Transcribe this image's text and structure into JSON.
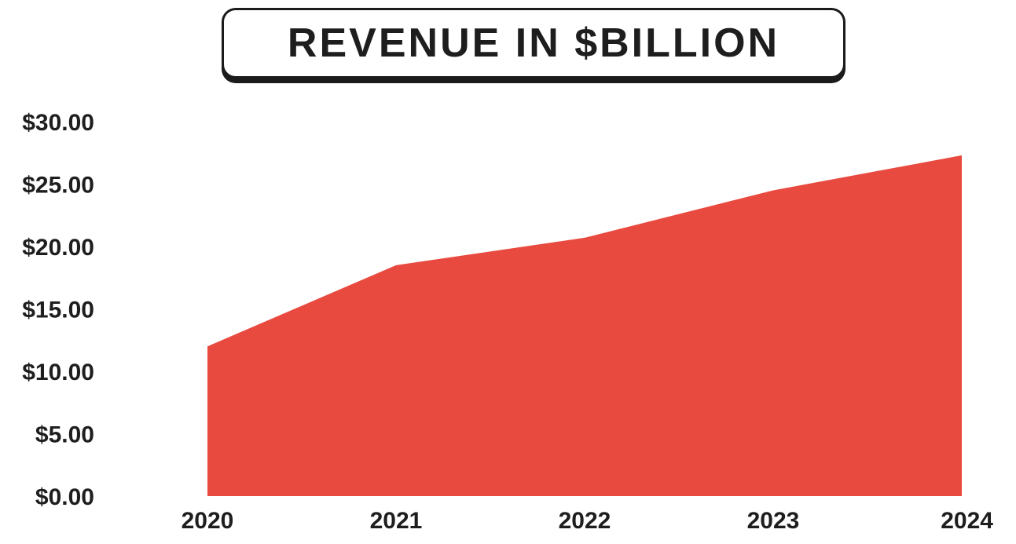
{
  "chart_data": {
    "type": "area",
    "title": "REVENUE IN $BILLION",
    "xlabel": "",
    "ylabel": "",
    "categories": [
      "2020",
      "2021",
      "2022",
      "2023",
      "2024"
    ],
    "values": [
      12.0,
      18.5,
      20.7,
      24.5,
      27.3
    ],
    "ylim": [
      0,
      30
    ],
    "y_ticks": [
      "$0.00",
      "$5.00",
      "$10.00",
      "$15.00",
      "$20.00",
      "$25.00",
      "$30.00"
    ],
    "y_tick_values": [
      0,
      5,
      10,
      15,
      20,
      25,
      30
    ],
    "grid": false,
    "legend": "none",
    "colors": {
      "area": "#e84a3f",
      "text": "#1e1e1e"
    }
  }
}
